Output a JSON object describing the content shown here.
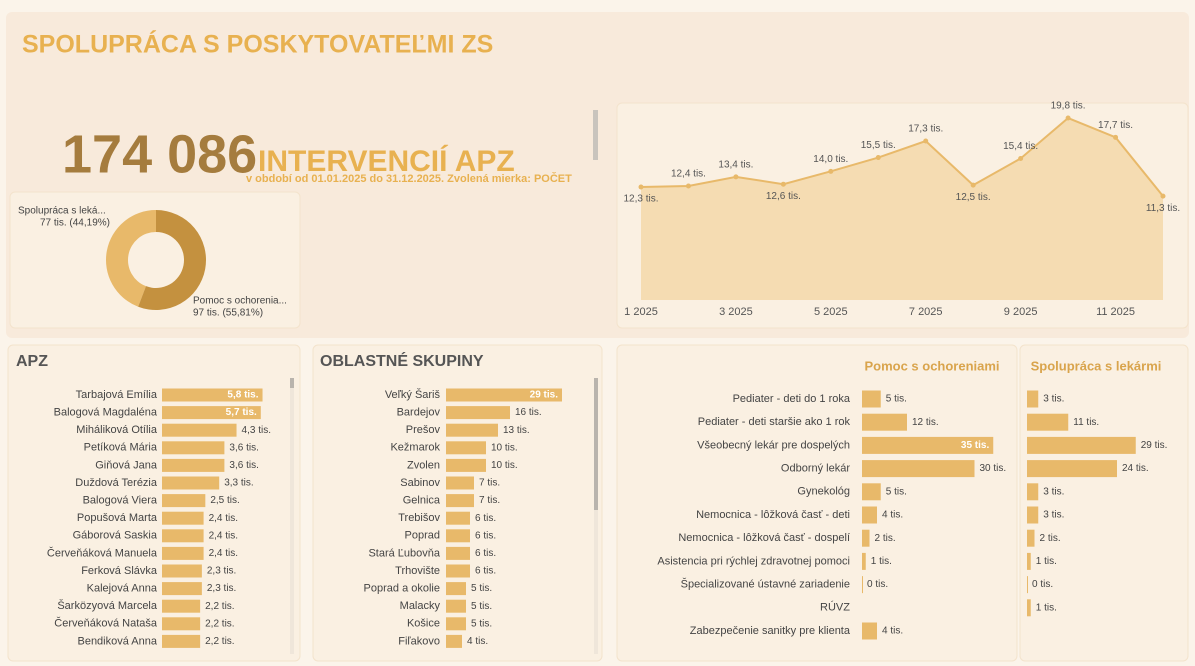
{
  "header": {
    "title": "SPOLUPRÁCA S POSKYTOVATEĽMI ZS",
    "kpi_value": "174 086",
    "kpi_label": "INTERVENCIÍ APZ",
    "subtitle": "v období od 01.01.2025 do 31.12.2025. Zvolená mierka: POČET"
  },
  "chart_data": [
    {
      "type": "pie",
      "donut": true,
      "categories": [
        "Spolupráca s leká...",
        "Pomoc s ochorenia..."
      ],
      "values": [
        44.19,
        55.81
      ],
      "value_labels": [
        "77 tis. (44,19%)",
        "97 tis. (55,81%)"
      ],
      "colors": [
        "#e8b96a",
        "#c4913f"
      ]
    },
    {
      "type": "line",
      "categories": [
        "1 2025",
        null,
        "3 2025",
        null,
        "5 2025",
        null,
        "7 2025",
        null,
        "9 2025",
        null,
        "11 2025",
        null
      ],
      "values": [
        12.3,
        12.4,
        13.4,
        12.6,
        14.0,
        15.5,
        17.3,
        12.5,
        15.4,
        19.8,
        17.7,
        11.3
      ],
      "value_labels": [
        "12,3 tis.",
        "12,4 tis.",
        "13,4 tis.",
        "12,6 tis.",
        "14,0 tis.",
        "15,5 tis.",
        "17,3 tis.",
        "12,5 tis.",
        "15,4 tis.",
        "19,8 tis.",
        "17,7 tis.",
        "11,3 tis."
      ],
      "ylim": [
        0,
        21
      ],
      "color": "#e8b96a",
      "area_color": "#f5dcb2"
    },
    {
      "type": "bar",
      "title": "APZ",
      "categories": [
        "Tarbajová Emília",
        "Balogová Magdaléna",
        "Miháliková Otília",
        "Petíková Mária",
        "Giňová Jana",
        "Duždová Terézia",
        "Balogová Viera",
        "Popušová Marta",
        "Gáborová Saskia",
        "Červeňáková Manuela",
        "Ferková Slávka",
        "Kalejová Anna",
        "Šarközyová Marcela",
        "Červeňáková Nataša",
        "Bendiková Anna"
      ],
      "values": [
        5.8,
        5.7,
        4.3,
        3.6,
        3.6,
        3.3,
        2.5,
        2.4,
        2.4,
        2.4,
        2.3,
        2.3,
        2.2,
        2.2,
        2.2
      ],
      "value_labels": [
        "5,8 tis.",
        "5,7 tis.",
        "4,3 tis.",
        "3,6 tis.",
        "3,6 tis.",
        "3,3 tis.",
        "2,5 tis.",
        "2,4 tis.",
        "2,4 tis.",
        "2,4 tis.",
        "2,3 tis.",
        "2,3 tis.",
        "2,2 tis.",
        "2,2 tis.",
        "2,2 tis."
      ],
      "xlim": [
        0,
        6
      ],
      "color": "#e8b96a"
    },
    {
      "type": "bar",
      "title": "OBLASTNÉ SKUPINY",
      "categories": [
        "Veľký Šariš",
        "Bardejov",
        "Prešov",
        "Kežmarok",
        "Zvolen",
        "Sabinov",
        "Gelnica",
        "Trebišov",
        "Poprad",
        "Stará Ľubovňa",
        "Trhovište",
        "Poprad a okolie",
        "Malacky",
        "Košice",
        "Fiľakovo"
      ],
      "values": [
        29,
        16,
        13,
        10,
        10,
        7,
        7,
        6,
        6,
        6,
        6,
        5,
        5,
        5,
        4
      ],
      "value_labels": [
        "29 tis.",
        "16 tis.",
        "13 tis.",
        "10 tis.",
        "10 tis.",
        "7 tis.",
        "7 tis.",
        "6 tis.",
        "6 tis.",
        "6 tis.",
        "6 tis.",
        "5 tis.",
        "5 tis.",
        "5 tis.",
        "4 tis."
      ],
      "xlim": [
        0,
        30
      ],
      "color": "#e8b96a"
    },
    {
      "type": "bar",
      "title": "Pomoc s ochoreniami",
      "categories": [
        "Pediater - deti do 1 roka",
        "Pediater - deti staršie ako 1 rok",
        "Všeobecný lekár pre dospelých",
        "Odborný lekár",
        "Gynekológ",
        "Nemocnica - lôžková časť - deti",
        "Nemocnica - lôžková časť - dospelí",
        "Asistencia pri rýchlej zdravotnej pomoci",
        "Špecializované ústavné zariadenie",
        "RÚVZ",
        "Zabezpečenie sanitky pre klienta"
      ],
      "values": [
        5,
        12,
        35,
        30,
        5,
        4,
        2,
        1,
        0,
        null,
        4
      ],
      "value_labels": [
        "5 tis.",
        "12 tis.",
        "35 tis.",
        "30 tis.",
        "5 tis.",
        "4 tis.",
        "2 tis.",
        "1 tis.",
        "0 tis.",
        null,
        "4 tis."
      ],
      "xlim": [
        0,
        36
      ],
      "color": "#e8b96a"
    },
    {
      "type": "bar",
      "title": "Spolupráca s lekármi",
      "values": [
        3,
        11,
        29,
        24,
        3,
        3,
        2,
        1,
        0,
        1,
        null
      ],
      "value_labels": [
        "3 tis.",
        "11 tis.",
        "29 tis.",
        "24 tis.",
        "3 tis.",
        "3 tis.",
        "2 tis.",
        "1 tis.",
        "0 tis.",
        "1 tis.",
        null
      ],
      "xlim": [
        0,
        36
      ],
      "color": "#e8b96a"
    }
  ]
}
